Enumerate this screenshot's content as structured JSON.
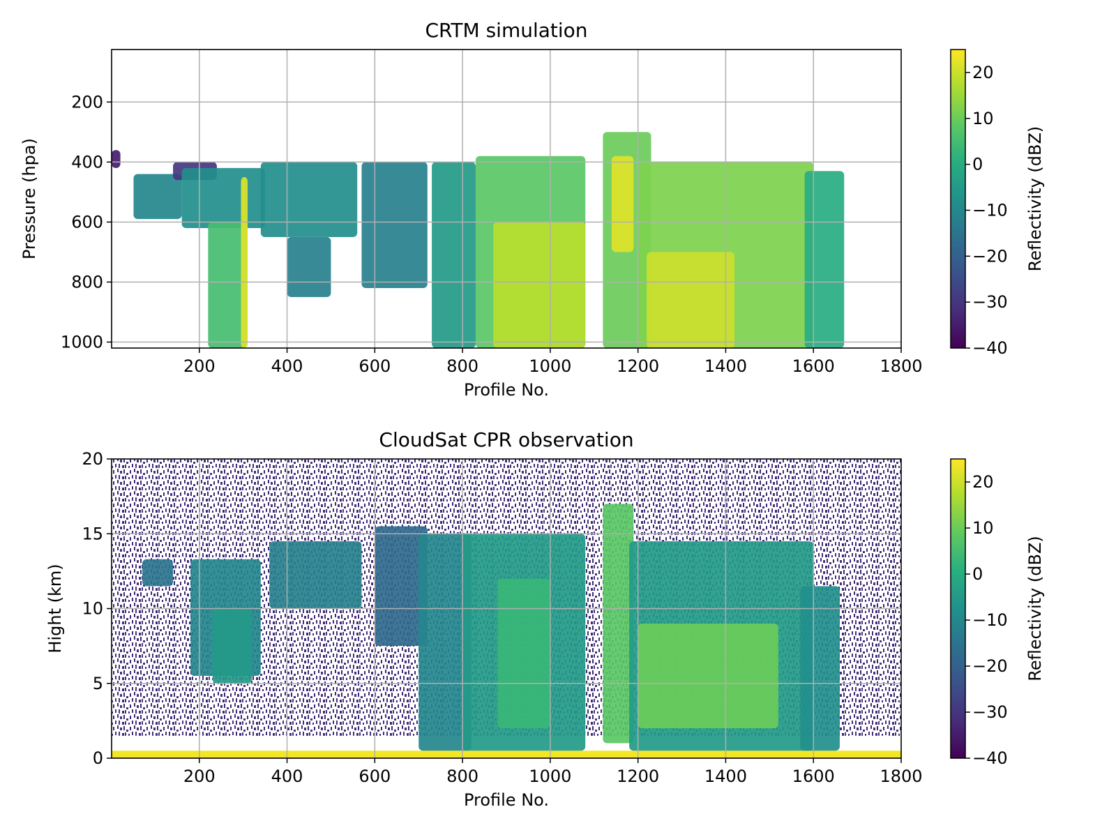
{
  "chart_data": [
    {
      "type": "heatmap",
      "title": "CRTM simulation",
      "xlabel": "Profile No.",
      "ylabel": "Pressure (hpa)",
      "xlim": [
        0,
        1800
      ],
      "ylim": [
        1020,
        25
      ],
      "y_inverted": true,
      "x_ticks": [
        200,
        400,
        600,
        800,
        1000,
        1200,
        1400,
        1600,
        1800
      ],
      "y_ticks": [
        200,
        400,
        600,
        800,
        1000
      ],
      "grid": true,
      "colorbar": {
        "label": "Reflectivity (dBZ)",
        "min": -40,
        "max": 25,
        "ticks": [
          -40,
          -30,
          -20,
          -10,
          0,
          10,
          20
        ],
        "colormap": "viridis"
      },
      "cloud_regions": [
        {
          "x": [
            0,
            20
          ],
          "y_top": 360,
          "y_bottom": 420,
          "dbz": -35
        },
        {
          "x": [
            50,
            160
          ],
          "y_top": 440,
          "y_bottom": 590,
          "dbz": -10
        },
        {
          "x": [
            140,
            240
          ],
          "y_top": 400,
          "y_bottom": 460,
          "dbz": -30
        },
        {
          "x": [
            160,
            350
          ],
          "y_top": 420,
          "y_bottom": 620,
          "dbz": -8
        },
        {
          "x": [
            220,
            310
          ],
          "y_top": 600,
          "y_bottom": 1020,
          "dbz": 5
        },
        {
          "x": [
            295,
            310
          ],
          "y_top": 450,
          "y_bottom": 1020,
          "dbz": 22
        },
        {
          "x": [
            340,
            560
          ],
          "y_top": 400,
          "y_bottom": 650,
          "dbz": -8
        },
        {
          "x": [
            400,
            500
          ],
          "y_top": 650,
          "y_bottom": 850,
          "dbz": -12
        },
        {
          "x": [
            570,
            720
          ],
          "y_top": 400,
          "y_bottom": 820,
          "dbz": -12
        },
        {
          "x": [
            730,
            830
          ],
          "y_top": 400,
          "y_bottom": 1020,
          "dbz": -5
        },
        {
          "x": [
            830,
            1080
          ],
          "y_top": 380,
          "y_bottom": 1020,
          "dbz": 8
        },
        {
          "x": [
            870,
            1080
          ],
          "y_top": 600,
          "y_bottom": 1020,
          "dbz": 18
        },
        {
          "x": [
            1120,
            1230
          ],
          "y_top": 300,
          "y_bottom": 1020,
          "dbz": 10
        },
        {
          "x": [
            1140,
            1190
          ],
          "y_top": 380,
          "y_bottom": 700,
          "dbz": 22
        },
        {
          "x": [
            1200,
            1600
          ],
          "y_top": 400,
          "y_bottom": 1020,
          "dbz": 12
        },
        {
          "x": [
            1220,
            1420
          ],
          "y_top": 700,
          "y_bottom": 1020,
          "dbz": 20
        },
        {
          "x": [
            1580,
            1670
          ],
          "y_top": 430,
          "y_bottom": 1020,
          "dbz": 0
        }
      ]
    },
    {
      "type": "heatmap",
      "title": "CloudSat CPR observation",
      "xlabel": "Profile No.",
      "ylabel": "Hight (km)",
      "xlim": [
        0,
        1800
      ],
      "ylim": [
        0,
        20
      ],
      "x_ticks": [
        200,
        400,
        600,
        800,
        1000,
        1200,
        1400,
        1600,
        1800
      ],
      "y_ticks": [
        0,
        5,
        10,
        15,
        20
      ],
      "grid": true,
      "noise_background": {
        "dbz": -35,
        "height_range": [
          1.5,
          20
        ]
      },
      "surface_layer": {
        "height_range": [
          0,
          0.5
        ],
        "dbz": 24
      },
      "colorbar": {
        "label": "Reflectivity (dBZ)",
        "min": -40,
        "max": 25,
        "ticks": [
          -40,
          -30,
          -20,
          -10,
          0,
          10,
          20
        ],
        "colormap": "viridis"
      },
      "cloud_regions": [
        {
          "x": [
            70,
            140
          ],
          "y_bottom": 11.5,
          "y_top": 13.3,
          "dbz": -15
        },
        {
          "x": [
            180,
            340
          ],
          "y_bottom": 5.5,
          "y_top": 13.3,
          "dbz": -10
        },
        {
          "x": [
            230,
            320
          ],
          "y_bottom": 5,
          "y_top": 10,
          "dbz": -5
        },
        {
          "x": [
            360,
            570
          ],
          "y_bottom": 10,
          "y_top": 14.5,
          "dbz": -12
        },
        {
          "x": [
            600,
            720
          ],
          "y_bottom": 7.5,
          "y_top": 15.5,
          "dbz": -18
        },
        {
          "x": [
            700,
            820
          ],
          "y_bottom": 0.5,
          "y_top": 15,
          "dbz": -10
        },
        {
          "x": [
            800,
            1080
          ],
          "y_bottom": 0.5,
          "y_top": 15,
          "dbz": -5
        },
        {
          "x": [
            880,
            1000
          ],
          "y_bottom": 2,
          "y_top": 12,
          "dbz": 3
        },
        {
          "x": [
            1120,
            1190
          ],
          "y_bottom": 1,
          "y_top": 17,
          "dbz": 8
        },
        {
          "x": [
            1180,
            1600
          ],
          "y_bottom": 0.5,
          "y_top": 14.5,
          "dbz": -5
        },
        {
          "x": [
            1200,
            1520
          ],
          "y_bottom": 2,
          "y_top": 9,
          "dbz": 10
        },
        {
          "x": [
            1570,
            1660
          ],
          "y_bottom": 0.5,
          "y_top": 11.5,
          "dbz": -8
        }
      ]
    }
  ]
}
